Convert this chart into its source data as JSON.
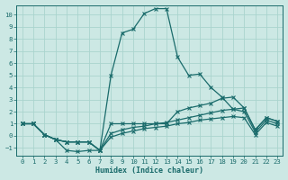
{
  "xlabel": "Humidex (Indice chaleur)",
  "bg_color": "#cce8e4",
  "line_color": "#1a6b6b",
  "grid_color": "#aad4ce",
  "xlim": [
    -0.5,
    23.5
  ],
  "ylim": [
    -1.6,
    10.8
  ],
  "xticks": [
    0,
    1,
    2,
    3,
    4,
    5,
    6,
    7,
    8,
    9,
    10,
    11,
    12,
    13,
    14,
    15,
    16,
    17,
    18,
    19,
    20,
    21,
    22,
    23
  ],
  "yticks": [
    -1,
    0,
    1,
    2,
    3,
    4,
    5,
    6,
    7,
    8,
    9,
    10
  ],
  "line1_x": [
    0,
    1,
    2,
    3,
    4,
    5,
    6,
    7,
    8,
    9,
    10,
    11,
    12,
    13,
    14,
    15,
    16,
    17,
    18,
    19,
    20,
    21,
    22,
    23
  ],
  "line1_y": [
    1.0,
    1.0,
    0.1,
    -0.3,
    -1.2,
    -1.3,
    -1.2,
    -1.2,
    5.0,
    8.5,
    8.8,
    10.1,
    10.5,
    10.5,
    6.5,
    5.0,
    5.1,
    4.0,
    3.2,
    2.2,
    2.3,
    0.5,
    1.5,
    1.2
  ],
  "line2_x": [
    0,
    1,
    2,
    3,
    4,
    5,
    6,
    7,
    8,
    9,
    10,
    11,
    12,
    13,
    14,
    15,
    16,
    17,
    18,
    19,
    20,
    21,
    22,
    23
  ],
  "line2_y": [
    1.0,
    1.0,
    0.1,
    -0.3,
    -0.5,
    -0.5,
    -0.5,
    -1.2,
    1.0,
    1.0,
    1.0,
    1.0,
    1.0,
    1.0,
    2.0,
    2.3,
    2.5,
    2.7,
    3.1,
    3.2,
    2.3,
    0.5,
    1.5,
    1.2
  ],
  "line3_x": [
    0,
    1,
    2,
    3,
    4,
    5,
    6,
    7,
    8,
    9,
    10,
    11,
    12,
    13,
    14,
    15,
    16,
    17,
    18,
    19,
    20,
    21,
    22,
    23
  ],
  "line3_y": [
    1.0,
    1.0,
    0.1,
    -0.3,
    -0.5,
    -0.5,
    -0.5,
    -1.2,
    0.2,
    0.5,
    0.7,
    0.8,
    1.0,
    1.1,
    1.3,
    1.5,
    1.7,
    1.9,
    2.1,
    2.2,
    2.0,
    0.3,
    1.3,
    1.0
  ],
  "line4_x": [
    0,
    1,
    2,
    3,
    4,
    5,
    6,
    7,
    8,
    9,
    10,
    11,
    12,
    13,
    14,
    15,
    16,
    17,
    18,
    19,
    20,
    21,
    22,
    23
  ],
  "line4_y": [
    1.0,
    1.0,
    0.1,
    -0.3,
    -0.5,
    -0.5,
    -0.5,
    -1.2,
    -0.1,
    0.2,
    0.4,
    0.6,
    0.7,
    0.8,
    1.0,
    1.1,
    1.3,
    1.4,
    1.5,
    1.6,
    1.5,
    0.1,
    1.1,
    0.8
  ]
}
